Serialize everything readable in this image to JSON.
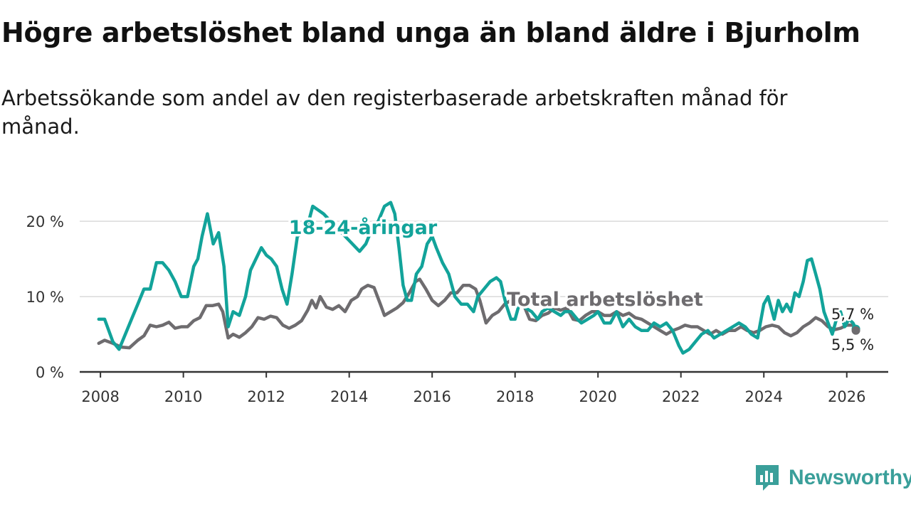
{
  "title": "Högre arbetslöshet bland unga än bland äldre i Bjurholm",
  "subtitle": "Arbetssökande som andel av den registerbaserade arbetskraften månad för månad.",
  "brand": {
    "name": "Newsworthy",
    "icon": "newsworthy-logo-icon",
    "color": "#3a9f9a"
  },
  "chart_data": {
    "type": "line",
    "title": "Högre arbetslöshet bland unga än bland äldre i Bjurholm",
    "xlabel": "",
    "ylabel": "",
    "xlim": [
      2007.5,
      2027.0
    ],
    "ylim": [
      0,
      22
    ],
    "x_ticks": [
      2008,
      2010,
      2012,
      2014,
      2016,
      2018,
      2020,
      2022,
      2024,
      2026
    ],
    "x_tick_labels": [
      "2008",
      "2010",
      "2012",
      "2014",
      "2016",
      "2018",
      "2020",
      "2022",
      "2024",
      "2026"
    ],
    "y_ticks": [
      0,
      10,
      20
    ],
    "y_tick_labels": [
      "0 %",
      "10 %",
      "20 %"
    ],
    "grid": "horizontal",
    "series": [
      {
        "name": "18-24-åringar",
        "label": "18-24-åringar",
        "color": "#12a39a",
        "end_label": "5,7 %",
        "points": [
          [
            2007.96,
            7.0
          ],
          [
            2008.1,
            7.0
          ],
          [
            2008.3,
            4.0
          ],
          [
            2008.45,
            3.0
          ],
          [
            2008.6,
            5.0
          ],
          [
            2008.75,
            7.0
          ],
          [
            2008.9,
            9.0
          ],
          [
            2009.05,
            11.0
          ],
          [
            2009.2,
            11.0
          ],
          [
            2009.35,
            14.5
          ],
          [
            2009.5,
            14.5
          ],
          [
            2009.65,
            13.5
          ],
          [
            2009.8,
            12.0
          ],
          [
            2009.95,
            10.0
          ],
          [
            2010.1,
            10.0
          ],
          [
            2010.25,
            14.0
          ],
          [
            2010.35,
            15.0
          ],
          [
            2010.45,
            18.0
          ],
          [
            2010.58,
            21.0
          ],
          [
            2010.72,
            17.0
          ],
          [
            2010.85,
            18.5
          ],
          [
            2010.98,
            14.0
          ],
          [
            2011.08,
            6.0
          ],
          [
            2011.2,
            8.0
          ],
          [
            2011.35,
            7.5
          ],
          [
            2011.5,
            10.0
          ],
          [
            2011.62,
            13.5
          ],
          [
            2011.75,
            15.0
          ],
          [
            2011.88,
            16.5
          ],
          [
            2012.0,
            15.5
          ],
          [
            2012.12,
            15.0
          ],
          [
            2012.25,
            14.0
          ],
          [
            2012.38,
            11.0
          ],
          [
            2012.5,
            9.0
          ],
          [
            2012.62,
            13.0
          ],
          [
            2012.75,
            18.0
          ],
          [
            2012.88,
            18.5
          ],
          [
            2013.0,
            19.5
          ],
          [
            2013.12,
            22.0
          ],
          [
            2013.25,
            21.5
          ],
          [
            2013.38,
            21.0
          ],
          [
            2014.25,
            16.0
          ],
          [
            2014.4,
            17.0
          ],
          [
            2014.55,
            19.0
          ],
          [
            2014.7,
            20.0
          ],
          [
            2014.85,
            22.0
          ],
          [
            2015.0,
            22.5
          ],
          [
            2015.1,
            21.0
          ],
          [
            2015.2,
            16.5
          ],
          [
            2015.3,
            11.5
          ],
          [
            2015.4,
            9.5
          ],
          [
            2015.5,
            9.5
          ],
          [
            2015.62,
            13.0
          ],
          [
            2015.75,
            14.0
          ],
          [
            2015.88,
            17.0
          ],
          [
            2016.0,
            18.0
          ],
          [
            2016.1,
            16.5
          ],
          [
            2016.25,
            14.5
          ],
          [
            2016.4,
            13.0
          ],
          [
            2016.55,
            10.0
          ],
          [
            2016.7,
            9.0
          ],
          [
            2016.85,
            9.0
          ],
          [
            2017.0,
            8.0
          ],
          [
            2017.1,
            10.0
          ],
          [
            2017.25,
            11.0
          ],
          [
            2017.4,
            12.0
          ],
          [
            2017.55,
            12.5
          ],
          [
            2017.65,
            12.0
          ],
          [
            2017.78,
            9.0
          ],
          [
            2017.9,
            7.0
          ],
          [
            2018.0,
            7.0
          ],
          [
            2018.1,
            9.0
          ],
          [
            2018.25,
            8.5
          ],
          [
            2018.4,
            8.0
          ],
          [
            2018.55,
            7.0
          ],
          [
            2018.65,
            8.0
          ],
          [
            2018.8,
            8.5
          ],
          [
            2018.95,
            8.0
          ],
          [
            2019.1,
            7.5
          ],
          [
            2019.2,
            8.0
          ],
          [
            2019.35,
            8.0
          ],
          [
            2019.5,
            7.0
          ],
          [
            2019.6,
            6.5
          ],
          [
            2019.75,
            7.0
          ],
          [
            2019.9,
            7.5
          ],
          [
            2020.0,
            8.0
          ],
          [
            2020.15,
            6.5
          ],
          [
            2020.3,
            6.5
          ],
          [
            2020.45,
            8.0
          ],
          [
            2020.6,
            6.0
          ],
          [
            2020.75,
            7.0
          ],
          [
            2020.9,
            6.0
          ],
          [
            2021.05,
            5.5
          ],
          [
            2021.2,
            5.5
          ],
          [
            2021.35,
            6.5
          ],
          [
            2021.5,
            6.0
          ],
          [
            2021.65,
            6.5
          ],
          [
            2021.8,
            5.5
          ],
          [
            2021.95,
            3.5
          ],
          [
            2022.05,
            2.5
          ],
          [
            2022.2,
            3.0
          ],
          [
            2022.35,
            4.0
          ],
          [
            2022.5,
            5.0
          ],
          [
            2022.65,
            5.5
          ],
          [
            2022.8,
            4.5
          ],
          [
            2022.95,
            5.0
          ],
          [
            2023.1,
            5.5
          ],
          [
            2023.25,
            6.0
          ],
          [
            2023.4,
            6.5
          ],
          [
            2023.55,
            6.0
          ],
          [
            2023.7,
            5.0
          ],
          [
            2023.85,
            4.5
          ],
          [
            2024.0,
            9.0
          ],
          [
            2024.1,
            10.0
          ],
          [
            2024.25,
            7.0
          ],
          [
            2024.35,
            9.5
          ],
          [
            2024.45,
            8.0
          ],
          [
            2024.55,
            9.0
          ],
          [
            2024.65,
            8.0
          ],
          [
            2024.75,
            10.5
          ],
          [
            2024.85,
            10.0
          ],
          [
            2024.95,
            12.0
          ],
          [
            2025.05,
            14.8
          ],
          [
            2025.15,
            15.0
          ],
          [
            2025.25,
            13.0
          ],
          [
            2025.35,
            11.0
          ],
          [
            2025.45,
            8.0
          ],
          [
            2025.55,
            6.5
          ],
          [
            2025.65,
            5.0
          ],
          [
            2025.75,
            7.0
          ],
          [
            2025.85,
            8.0
          ],
          [
            2025.95,
            6.0
          ],
          [
            2026.05,
            7.0
          ],
          [
            2026.15,
            6.5
          ],
          [
            2026.22,
            5.7
          ]
        ]
      },
      {
        "name": "Total arbetslöshet",
        "label": "Total arbetslöshet",
        "color": "#6e6c6f",
        "end_label": "5,5 %",
        "points": [
          [
            2007.96,
            3.8
          ],
          [
            2008.1,
            4.2
          ],
          [
            2008.3,
            3.8
          ],
          [
            2008.5,
            3.3
          ],
          [
            2008.7,
            3.2
          ],
          [
            2008.9,
            4.2
          ],
          [
            2009.05,
            4.8
          ],
          [
            2009.2,
            6.2
          ],
          [
            2009.35,
            6.0
          ],
          [
            2009.5,
            6.2
          ],
          [
            2009.65,
            6.6
          ],
          [
            2009.8,
            5.8
          ],
          [
            2009.95,
            6.0
          ],
          [
            2010.1,
            6.0
          ],
          [
            2010.25,
            6.8
          ],
          [
            2010.4,
            7.2
          ],
          [
            2010.55,
            8.8
          ],
          [
            2010.7,
            8.8
          ],
          [
            2010.85,
            9.0
          ],
          [
            2010.95,
            8.0
          ],
          [
            2011.08,
            4.5
          ],
          [
            2011.2,
            5.0
          ],
          [
            2011.35,
            4.6
          ],
          [
            2011.5,
            5.2
          ],
          [
            2011.65,
            6.0
          ],
          [
            2011.8,
            7.2
          ],
          [
            2011.95,
            7.0
          ],
          [
            2012.1,
            7.4
          ],
          [
            2012.25,
            7.2
          ],
          [
            2012.4,
            6.2
          ],
          [
            2012.55,
            5.8
          ],
          [
            2012.7,
            6.2
          ],
          [
            2012.85,
            6.8
          ],
          [
            2013.0,
            8.2
          ],
          [
            2013.1,
            9.5
          ],
          [
            2013.2,
            8.5
          ],
          [
            2013.3,
            10.0
          ],
          [
            2013.45,
            8.6
          ],
          [
            2013.6,
            8.3
          ],
          [
            2013.75,
            8.8
          ],
          [
            2013.9,
            8.0
          ],
          [
            2014.05,
            9.5
          ],
          [
            2014.2,
            10.0
          ],
          [
            2014.3,
            11.0
          ],
          [
            2014.45,
            11.5
          ],
          [
            2014.6,
            11.2
          ],
          [
            2014.75,
            9.0
          ],
          [
            2014.85,
            7.5
          ],
          [
            2015.0,
            8.0
          ],
          [
            2015.15,
            8.5
          ],
          [
            2015.3,
            9.2
          ],
          [
            2015.45,
            10.5
          ],
          [
            2015.6,
            12.0
          ],
          [
            2015.7,
            12.3
          ],
          [
            2015.85,
            11.0
          ],
          [
            2016.0,
            9.5
          ],
          [
            2016.15,
            8.8
          ],
          [
            2016.3,
            9.5
          ],
          [
            2016.45,
            10.5
          ],
          [
            2016.6,
            10.5
          ],
          [
            2016.75,
            11.5
          ],
          [
            2016.9,
            11.5
          ],
          [
            2017.05,
            11.0
          ],
          [
            2017.15,
            9.5
          ],
          [
            2017.3,
            6.5
          ],
          [
            2017.45,
            7.5
          ],
          [
            2017.6,
            8.0
          ],
          [
            2017.75,
            9.0
          ],
          [
            2017.9,
            9.5
          ],
          [
            2018.05,
            9.2
          ],
          [
            2018.2,
            9.0
          ],
          [
            2018.35,
            7.0
          ],
          [
            2018.5,
            6.8
          ],
          [
            2018.65,
            7.5
          ],
          [
            2018.8,
            7.8
          ],
          [
            2018.95,
            8.5
          ],
          [
            2019.1,
            8.2
          ],
          [
            2019.25,
            8.5
          ],
          [
            2019.4,
            7.0
          ],
          [
            2019.55,
            6.8
          ],
          [
            2019.7,
            7.5
          ],
          [
            2019.85,
            8.0
          ],
          [
            2020.0,
            8.0
          ],
          [
            2020.15,
            7.5
          ],
          [
            2020.3,
            7.5
          ],
          [
            2020.45,
            8.0
          ],
          [
            2020.6,
            7.5
          ],
          [
            2020.75,
            7.8
          ],
          [
            2020.9,
            7.2
          ],
          [
            2021.05,
            7.0
          ],
          [
            2021.2,
            6.5
          ],
          [
            2021.35,
            6.0
          ],
          [
            2021.5,
            5.5
          ],
          [
            2021.65,
            5.0
          ],
          [
            2021.8,
            5.5
          ],
          [
            2021.95,
            5.8
          ],
          [
            2022.1,
            6.2
          ],
          [
            2022.25,
            6.0
          ],
          [
            2022.4,
            6.0
          ],
          [
            2022.55,
            5.5
          ],
          [
            2022.7,
            5.0
          ],
          [
            2022.85,
            5.5
          ],
          [
            2023.0,
            5.0
          ],
          [
            2023.15,
            5.5
          ],
          [
            2023.3,
            5.5
          ],
          [
            2023.45,
            6.0
          ],
          [
            2023.6,
            5.5
          ],
          [
            2023.75,
            5.2
          ],
          [
            2023.9,
            5.5
          ],
          [
            2024.05,
            6.0
          ],
          [
            2024.2,
            6.2
          ],
          [
            2024.35,
            6.0
          ],
          [
            2024.5,
            5.2
          ],
          [
            2024.65,
            4.8
          ],
          [
            2024.8,
            5.2
          ],
          [
            2024.95,
            6.0
          ],
          [
            2025.1,
            6.5
          ],
          [
            2025.25,
            7.2
          ],
          [
            2025.4,
            6.8
          ],
          [
            2025.55,
            6.0
          ],
          [
            2025.7,
            5.6
          ],
          [
            2025.85,
            5.8
          ],
          [
            2026.0,
            6.2
          ],
          [
            2026.15,
            6.2
          ],
          [
            2026.22,
            5.5
          ]
        ]
      }
    ]
  }
}
